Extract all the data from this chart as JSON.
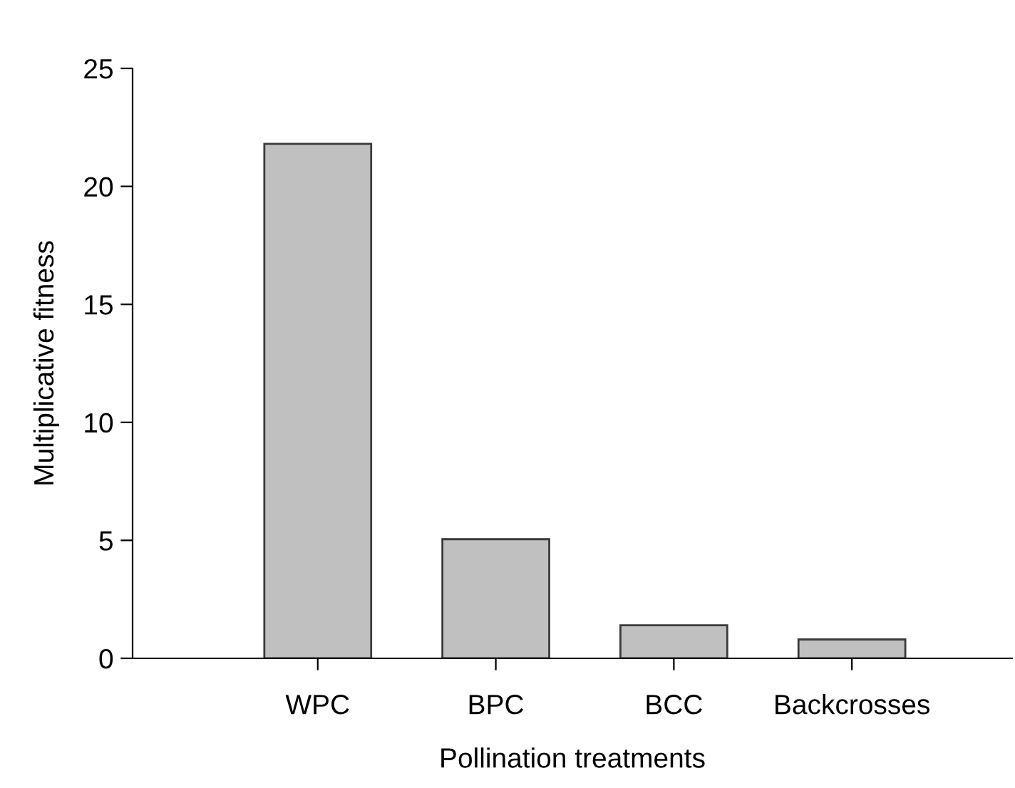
{
  "chart_data": {
    "type": "bar",
    "xlabel": "Pollination treatments",
    "ylabel": "Multiplicative fitness",
    "categories": [
      "WPC",
      "BPC",
      "BCC",
      "Backcrosses"
    ],
    "values": [
      21.8,
      5.05,
      1.4,
      0.8
    ],
    "color": "#c0c0c0",
    "ylim": [
      0,
      25
    ],
    "yticks": [
      0,
      5,
      10,
      15,
      20,
      25
    ],
    "grid": false,
    "legend": false
  }
}
